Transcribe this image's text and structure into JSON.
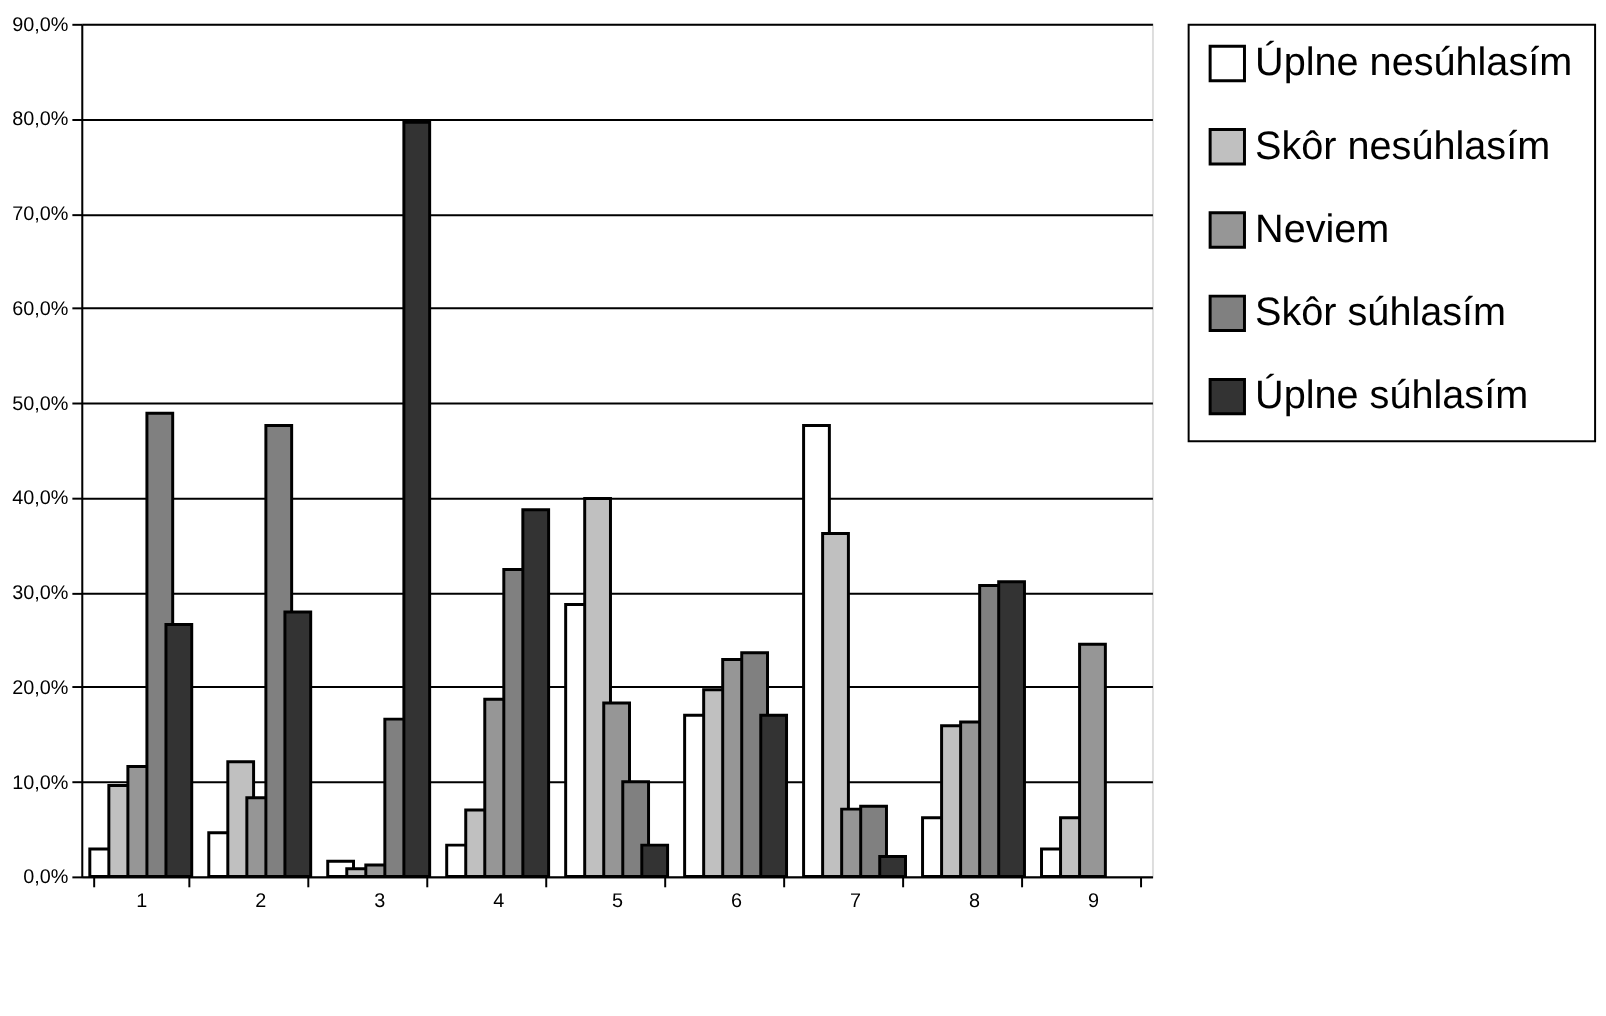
{
  "chart_data": {
    "type": "bar",
    "categories": [
      "1",
      "2",
      "3",
      "4",
      "5",
      "6",
      "7",
      "8",
      "9"
    ],
    "series": [
      {
        "name": "Úplne nesúhlasím",
        "color": "#ffffff",
        "values": [
          2.9,
          4.6,
          1.6,
          3.3,
          28.7,
          17.0,
          47.6,
          6.2,
          2.9
        ]
      },
      {
        "name": "Skôr nesúhlasím",
        "color": "#c0c0c0",
        "values": [
          9.6,
          12.1,
          0.8,
          7.0,
          39.9,
          19.7,
          36.2,
          15.9,
          6.2
        ]
      },
      {
        "name": "Neviem",
        "color": "#969696",
        "values": [
          11.6,
          8.3,
          1.2,
          18.7,
          18.3,
          22.9,
          7.1,
          16.3,
          24.5
        ]
      },
      {
        "name": "Skôr súhlasím",
        "color": "#808080",
        "values": [
          48.9,
          47.6,
          16.6,
          32.4,
          10.0,
          23.6,
          7.4,
          30.7,
          null
        ]
      },
      {
        "name": "Úplne súhlasím",
        "color": "#333333",
        "values": [
          26.6,
          27.9,
          79.6,
          38.7,
          3.3,
          17.0,
          2.1,
          31.1,
          null
        ]
      }
    ],
    "ylim": [
      0,
      90
    ],
    "yticks": [
      {
        "value": 0,
        "label": "0,0%"
      },
      {
        "value": 10,
        "label": "10,0%"
      },
      {
        "value": 20,
        "label": "20,0%"
      },
      {
        "value": 30,
        "label": "30,0%"
      },
      {
        "value": 40,
        "label": "40,0%"
      },
      {
        "value": 50,
        "label": "50,0%"
      },
      {
        "value": 60,
        "label": "60,0%"
      },
      {
        "value": 70,
        "label": "70,0%"
      },
      {
        "value": 80,
        "label": "80,0%"
      },
      {
        "value": 90,
        "label": "90,0%"
      }
    ],
    "grid": "y",
    "legend": "top right"
  }
}
